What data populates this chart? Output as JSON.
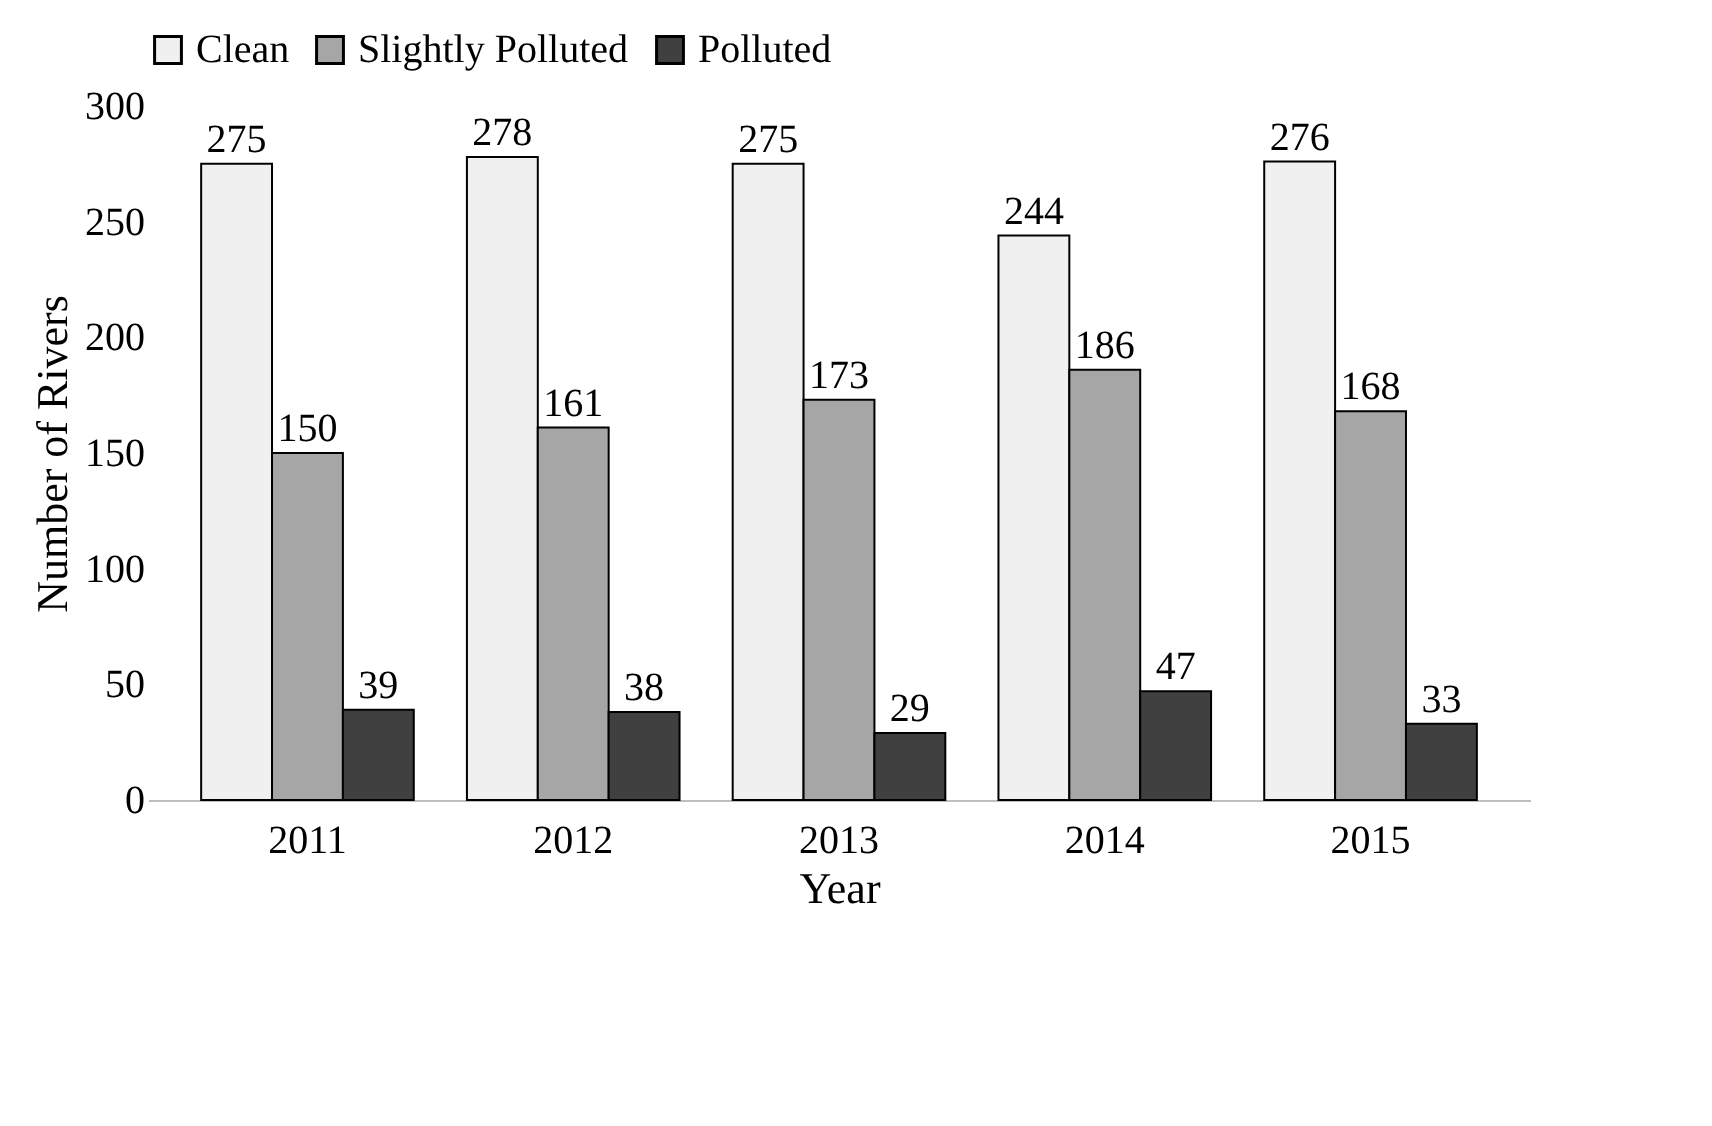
{
  "chart_data": {
    "type": "bar",
    "xlabel": "Year",
    "ylabel": "Number of Rivers",
    "categories": [
      "2011",
      "2012",
      "2013",
      "2014",
      "2015"
    ],
    "series": [
      {
        "name": "Clean",
        "color": "#f0f0f0",
        "values": [
          275,
          278,
          275,
          244,
          276
        ]
      },
      {
        "name": "Slightly Polluted",
        "color": "#a6a6a6",
        "values": [
          150,
          161,
          173,
          186,
          168
        ]
      },
      {
        "name": "Polluted",
        "color": "#404040",
        "values": [
          39,
          38,
          29,
          47,
          33
        ]
      }
    ],
    "ylim": [
      0,
      300
    ],
    "yticks": [
      0,
      50,
      100,
      150,
      200,
      250,
      300
    ],
    "data_labels": true,
    "grid": false,
    "legend": "top"
  }
}
